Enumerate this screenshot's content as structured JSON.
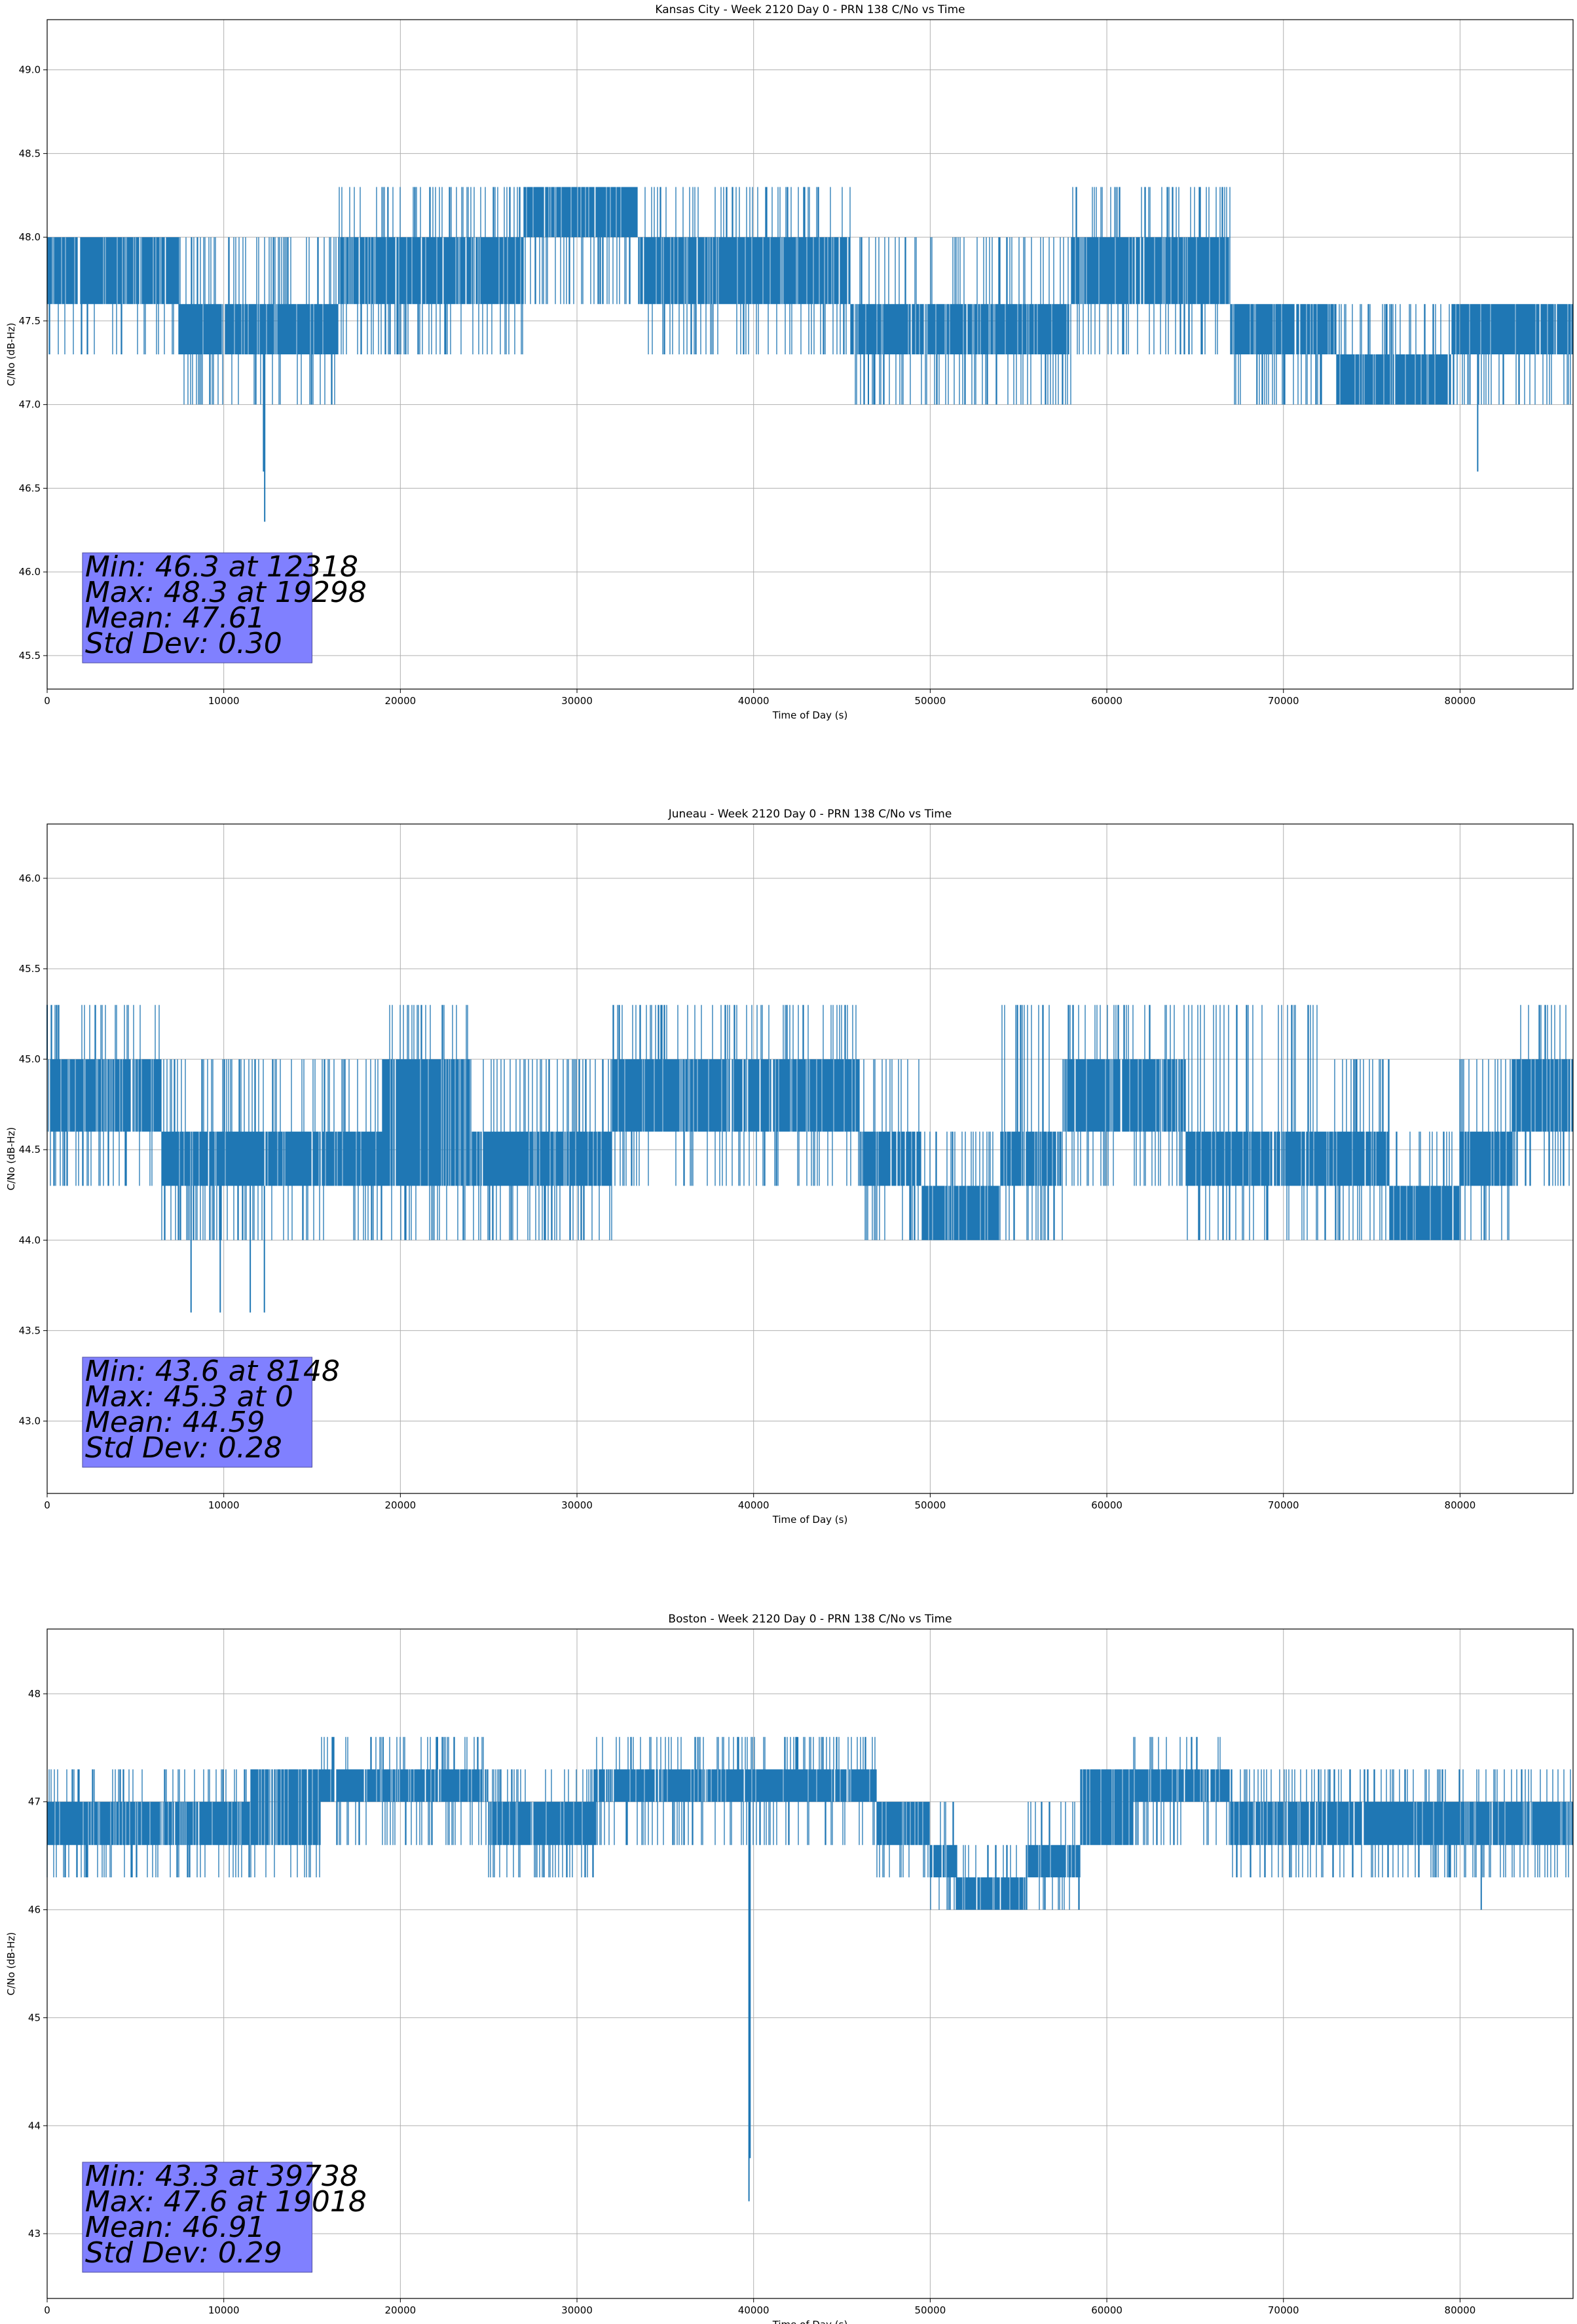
{
  "chart_data": [
    {
      "type": "line",
      "title": "Kansas City - Week 2120 Day 0 - PRN 138 C/No vs Time",
      "xlabel": "Time of Day (s)",
      "ylabel": "C/No (dB-Hz)",
      "xlim": [
        0,
        86400
      ],
      "ylim": [
        45.3,
        49.3
      ],
      "xticks": [
        0,
        10000,
        20000,
        30000,
        40000,
        50000,
        60000,
        70000,
        80000
      ],
      "yticks": [
        45.5,
        46.0,
        46.5,
        47.0,
        47.5,
        48.0,
        48.5,
        49.0
      ],
      "ytick_labels": [
        "45.5",
        "46.0",
        "46.5",
        "47.0",
        "47.5",
        "48.0",
        "48.5",
        "49.0"
      ],
      "grid": true,
      "line_color": "#1f77b4",
      "stats_box_color": "#8080ff",
      "stats": [
        "Min: 46.3 at 12318",
        "Max: 48.3 at 19298",
        "Mean: 47.61",
        "Std Dev: 0.30"
      ],
      "segments": [
        {
          "x0": 0,
          "x1": 7500,
          "base": [
            47.6,
            48.0
          ],
          "lo": 47.3,
          "hi": 48.0
        },
        {
          "x0": 7500,
          "x1": 16500,
          "base": [
            47.3,
            47.6
          ],
          "lo": 47.0,
          "hi": 48.0
        },
        {
          "x0": 16500,
          "x1": 27000,
          "base": [
            47.6,
            48.0
          ],
          "lo": 47.3,
          "hi": 48.3
        },
        {
          "x0": 27000,
          "x1": 33500,
          "base": [
            48.0,
            48.3
          ],
          "lo": 47.6,
          "hi": 48.3
        },
        {
          "x0": 33500,
          "x1": 45500,
          "base": [
            47.6,
            48.0
          ],
          "lo": 47.3,
          "hi": 48.3
        },
        {
          "x0": 45500,
          "x1": 58000,
          "base": [
            47.3,
            47.6
          ],
          "lo": 47.0,
          "hi": 48.0
        },
        {
          "x0": 58000,
          "x1": 67000,
          "base": [
            47.6,
            48.0
          ],
          "lo": 47.3,
          "hi": 48.3
        },
        {
          "x0": 67000,
          "x1": 73000,
          "base": [
            47.3,
            47.6
          ],
          "lo": 47.0,
          "hi": 47.6
        },
        {
          "x0": 73000,
          "x1": 79500,
          "base": [
            47.0,
            47.3
          ],
          "lo": 47.0,
          "hi": 47.6
        },
        {
          "x0": 79500,
          "x1": 86400,
          "base": [
            47.3,
            47.6
          ],
          "lo": 47.0,
          "hi": 47.6
        }
      ],
      "spikes": [
        {
          "x": 12318,
          "y": 46.3
        },
        {
          "x": 12250,
          "y": 46.6
        },
        {
          "x": 81000,
          "y": 46.6
        },
        {
          "x": 46500,
          "y": 47.0
        },
        {
          "x": 68500,
          "y": 47.0
        },
        {
          "x": 19298,
          "y": 48.3
        }
      ]
    },
    {
      "type": "line",
      "title": "Juneau - Week 2120 Day 0 - PRN 138 C/No vs Time",
      "xlabel": "Time of Day (s)",
      "ylabel": "C/No (dB-Hz)",
      "xlim": [
        0,
        86400
      ],
      "ylim": [
        42.6,
        46.3
      ],
      "xticks": [
        0,
        10000,
        20000,
        30000,
        40000,
        50000,
        60000,
        70000,
        80000
      ],
      "yticks": [
        43.0,
        43.5,
        44.0,
        44.5,
        45.0,
        45.5,
        46.0
      ],
      "ytick_labels": [
        "43.0",
        "43.5",
        "44.0",
        "44.5",
        "45.0",
        "45.5",
        "46.0"
      ],
      "grid": true,
      "line_color": "#1f77b4",
      "stats_box_color": "#8080ff",
      "stats": [
        "Min: 43.6 at 8148",
        "Max: 45.3 at 0",
        "Mean: 44.59",
        "Std Dev: 0.28"
      ],
      "segments": [
        {
          "x0": 0,
          "x1": 6500,
          "base": [
            44.6,
            45.0
          ],
          "lo": 44.3,
          "hi": 45.3
        },
        {
          "x0": 6500,
          "x1": 19000,
          "base": [
            44.3,
            44.6
          ],
          "lo": 44.0,
          "hi": 45.0
        },
        {
          "x0": 19000,
          "x1": 24000,
          "base": [
            44.3,
            45.0
          ],
          "lo": 44.0,
          "hi": 45.3
        },
        {
          "x0": 24000,
          "x1": 32000,
          "base": [
            44.3,
            44.6
          ],
          "lo": 44.0,
          "hi": 45.0
        },
        {
          "x0": 32000,
          "x1": 46000,
          "base": [
            44.6,
            45.0
          ],
          "lo": 44.3,
          "hi": 45.3
        },
        {
          "x0": 46000,
          "x1": 49500,
          "base": [
            44.3,
            44.6
          ],
          "lo": 44.0,
          "hi": 45.0
        },
        {
          "x0": 49500,
          "x1": 54000,
          "base": [
            44.0,
            44.3
          ],
          "lo": 44.0,
          "hi": 44.6
        },
        {
          "x0": 54000,
          "x1": 57500,
          "base": [
            44.3,
            44.6
          ],
          "lo": 44.0,
          "hi": 45.3
        },
        {
          "x0": 57500,
          "x1": 64500,
          "base": [
            44.6,
            45.0
          ],
          "lo": 44.3,
          "hi": 45.3
        },
        {
          "x0": 64500,
          "x1": 72000,
          "base": [
            44.3,
            44.6
          ],
          "lo": 44.0,
          "hi": 45.3
        },
        {
          "x0": 72000,
          "x1": 76000,
          "base": [
            44.3,
            44.6
          ],
          "lo": 44.0,
          "hi": 45.0
        },
        {
          "x0": 76000,
          "x1": 80000,
          "base": [
            44.0,
            44.3
          ],
          "lo": 44.0,
          "hi": 44.6
        },
        {
          "x0": 80000,
          "x1": 83000,
          "base": [
            44.3,
            44.6
          ],
          "lo": 44.0,
          "hi": 45.0
        },
        {
          "x0": 83000,
          "x1": 86400,
          "base": [
            44.6,
            45.0
          ],
          "lo": 44.3,
          "hi": 45.3
        }
      ],
      "spikes": [
        {
          "x": 8148,
          "y": 43.6
        },
        {
          "x": 9800,
          "y": 43.6
        },
        {
          "x": 11500,
          "y": 43.6
        },
        {
          "x": 12300,
          "y": 43.6
        },
        {
          "x": 0,
          "y": 45.3
        }
      ]
    },
    {
      "type": "line",
      "title": "Boston - Week 2120 Day 0 - PRN 138 C/No vs Time",
      "xlabel": "Time of Day (s)",
      "ylabel": "C/No (dB-Hz)",
      "xlim": [
        0,
        86400
      ],
      "ylim": [
        42.4,
        48.6
      ],
      "xticks": [
        0,
        10000,
        20000,
        30000,
        40000,
        50000,
        60000,
        70000,
        80000
      ],
      "yticks": [
        43,
        44,
        45,
        46,
        47,
        48
      ],
      "ytick_labels": [
        "43",
        "44",
        "45",
        "46",
        "47",
        "48"
      ],
      "grid": true,
      "line_color": "#1f77b4",
      "stats_box_color": "#8080ff",
      "stats": [
        "Min: 43.3 at 39738",
        "Max: 47.6 at 19018",
        "Mean: 46.91",
        "Std Dev: 0.29"
      ],
      "segments": [
        {
          "x0": 0,
          "x1": 11500,
          "base": [
            46.6,
            47.0
          ],
          "lo": 46.3,
          "hi": 47.3
        },
        {
          "x0": 11500,
          "x1": 15500,
          "base": [
            46.6,
            47.3
          ],
          "lo": 46.3,
          "hi": 47.3
        },
        {
          "x0": 15500,
          "x1": 25000,
          "base": [
            47.0,
            47.3
          ],
          "lo": 46.6,
          "hi": 47.6
        },
        {
          "x0": 25000,
          "x1": 31000,
          "base": [
            46.6,
            47.0
          ],
          "lo": 46.3,
          "hi": 47.3
        },
        {
          "x0": 31000,
          "x1": 47000,
          "base": [
            47.0,
            47.3
          ],
          "lo": 46.6,
          "hi": 47.6
        },
        {
          "x0": 47000,
          "x1": 50000,
          "base": [
            46.6,
            47.0
          ],
          "lo": 46.3,
          "hi": 47.0
        },
        {
          "x0": 50000,
          "x1": 51500,
          "base": [
            46.3,
            46.6
          ],
          "lo": 46.0,
          "hi": 47.0
        },
        {
          "x0": 51500,
          "x1": 55500,
          "base": [
            46.0,
            46.3
          ],
          "lo": 46.0,
          "hi": 46.6
        },
        {
          "x0": 55500,
          "x1": 58500,
          "base": [
            46.3,
            46.6
          ],
          "lo": 46.0,
          "hi": 47.0
        },
        {
          "x0": 58500,
          "x1": 61500,
          "base": [
            46.6,
            47.3
          ],
          "lo": 46.6,
          "hi": 47.3
        },
        {
          "x0": 61500,
          "x1": 67000,
          "base": [
            47.0,
            47.3
          ],
          "lo": 46.6,
          "hi": 47.6
        },
        {
          "x0": 67000,
          "x1": 86400,
          "base": [
            46.6,
            47.0
          ],
          "lo": 46.3,
          "hi": 47.3
        }
      ],
      "spikes": [
        {
          "x": 39738,
          "y": 43.3
        },
        {
          "x": 39800,
          "y": 43.7
        },
        {
          "x": 81200,
          "y": 46.0
        },
        {
          "x": 19018,
          "y": 47.6
        },
        {
          "x": 22100,
          "y": 47.6
        },
        {
          "x": 42500,
          "y": 47.6
        },
        {
          "x": 44700,
          "y": 47.6
        }
      ]
    }
  ]
}
